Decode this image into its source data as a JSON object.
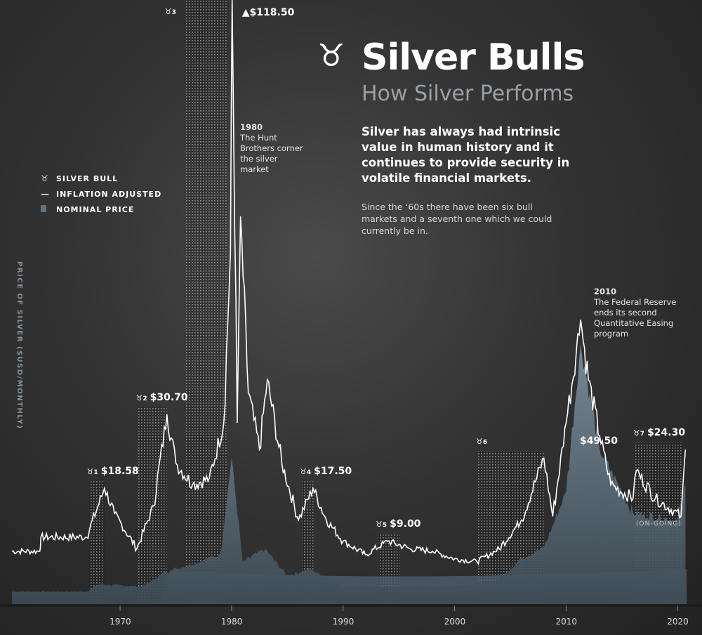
{
  "header": {
    "title": "Silver Bulls",
    "subtitle": "How Silver Performs",
    "lead": "Silver has always had intrinsic value in human history and it continues to provide security in volatile financial markets.",
    "body": "Since the ‘60s there have been six bull markets and a seventh one which we could currently be in."
  },
  "legend": {
    "items": [
      {
        "label": "SILVER BULL",
        "icon": "bull-icon"
      },
      {
        "label": "INFLATION ADJUSTED",
        "icon": "line-icon"
      },
      {
        "label": "NOMINAL PRICE",
        "icon": "area-swatch-icon"
      }
    ]
  },
  "annotations": {
    "hunt_year": "1980",
    "hunt_text": "The Hunt Brothers corner the silver market",
    "fed_year": "2010",
    "fed_text": "The Federal Reserve ends its second Quantitative Easing program",
    "ongoing": "(ON-GOING)"
  },
  "colors": {
    "inflation_line": "#ffffff",
    "nominal_fill": "#5f7280",
    "band_fill": "#8fa3b0"
  },
  "chart_data": {
    "type": "line",
    "title": "Silver Bulls",
    "ylabel": "PRICE OF SILVER ($USD/MONTHLY)",
    "xlabel": "",
    "xlim": [
      1960.3,
      2020.8
    ],
    "ylim": [
      0,
      120
    ],
    "x_ticks": [
      "1970",
      "1980",
      "1990",
      "2000",
      "2010",
      "2020"
    ],
    "x_tick_values": [
      1970,
      1980,
      1990,
      2000,
      2010,
      2020
    ],
    "series": [
      {
        "name": "INFLATION ADJUSTED",
        "x": [
          1960.3,
          1962.8,
          1962.9,
          1967.0,
          1968.6,
          1969.5,
          1971.5,
          1973.0,
          1974.2,
          1975.0,
          1976.5,
          1978.0,
          1979.3,
          1979.9,
          1980.05,
          1980.5,
          1980.8,
          1981.5,
          1982.5,
          1983.2,
          1984.5,
          1986.0,
          1987.3,
          1988.5,
          1990.0,
          1992.0,
          1994.0,
          1996.0,
          1998.0,
          2000.0,
          2002.0,
          2004.0,
          2006.0,
          2008.0,
          2008.8,
          2010.0,
          2011.3,
          2012.0,
          2013.0,
          2014.0,
          2016.0,
          2016.3,
          2018.0,
          2020.3,
          2020.7
        ],
        "values": [
          10.5,
          10.5,
          13.3,
          13.3,
          23,
          18,
          11,
          19.5,
          37.7,
          28,
          23.7,
          25,
          36,
          70,
          120,
          36,
          77,
          42,
          30.7,
          44.6,
          28,
          16.7,
          23,
          16.7,
          12.5,
          9.8,
          12.5,
          11,
          10.5,
          9,
          8.4,
          11,
          16.7,
          29,
          17.4,
          36,
          56.5,
          44.6,
          33.5,
          23.7,
          21,
          26.5,
          21,
          17.4,
          30.7
        ]
      },
      {
        "name": "NOMINAL PRICE",
        "x": [
          1960.3,
          1967.0,
          1968.0,
          1972.0,
          1974.0,
          1979.0,
          1980.0,
          1981.0,
          1983.0,
          1985.0,
          1987.0,
          1990.0,
          2000.0,
          2004.0,
          2006.0,
          2008.0,
          2010.0,
          2011.3,
          2013.0,
          2016.0,
          2020.0,
          2020.7
        ],
        "values": [
          2.5,
          2.5,
          3.9,
          3.5,
          6.3,
          9.8,
          29,
          8.4,
          11,
          5.6,
          7,
          3.5,
          3.5,
          4.9,
          9.1,
          11.2,
          22.3,
          51.6,
          30.7,
          18.1,
          16.7,
          24
        ]
      }
    ],
    "bull_markets": [
      {
        "id": "1",
        "start": 1967.2,
        "end": 1968.6,
        "peak_label": "$18.58"
      },
      {
        "id": "2",
        "start": 1971.6,
        "end": 1974.2,
        "peak_label": "$30.70"
      },
      {
        "id": "3",
        "start": 1975.9,
        "end": 1979.6,
        "peak_label": "▲$118.50"
      },
      {
        "id": "4",
        "start": 1986.3,
        "end": 1987.4,
        "peak_label": "$17.50"
      },
      {
        "id": "5",
        "start": 1993.1,
        "end": 1995.1,
        "peak_label": "$9.00"
      },
      {
        "id": "6",
        "start": 2002.1,
        "end": 2008.0,
        "peak_label": "$49.50"
      },
      {
        "id": "7",
        "start": 2016.2,
        "end": 2020.4,
        "peak_label": "$24.30"
      }
    ]
  }
}
